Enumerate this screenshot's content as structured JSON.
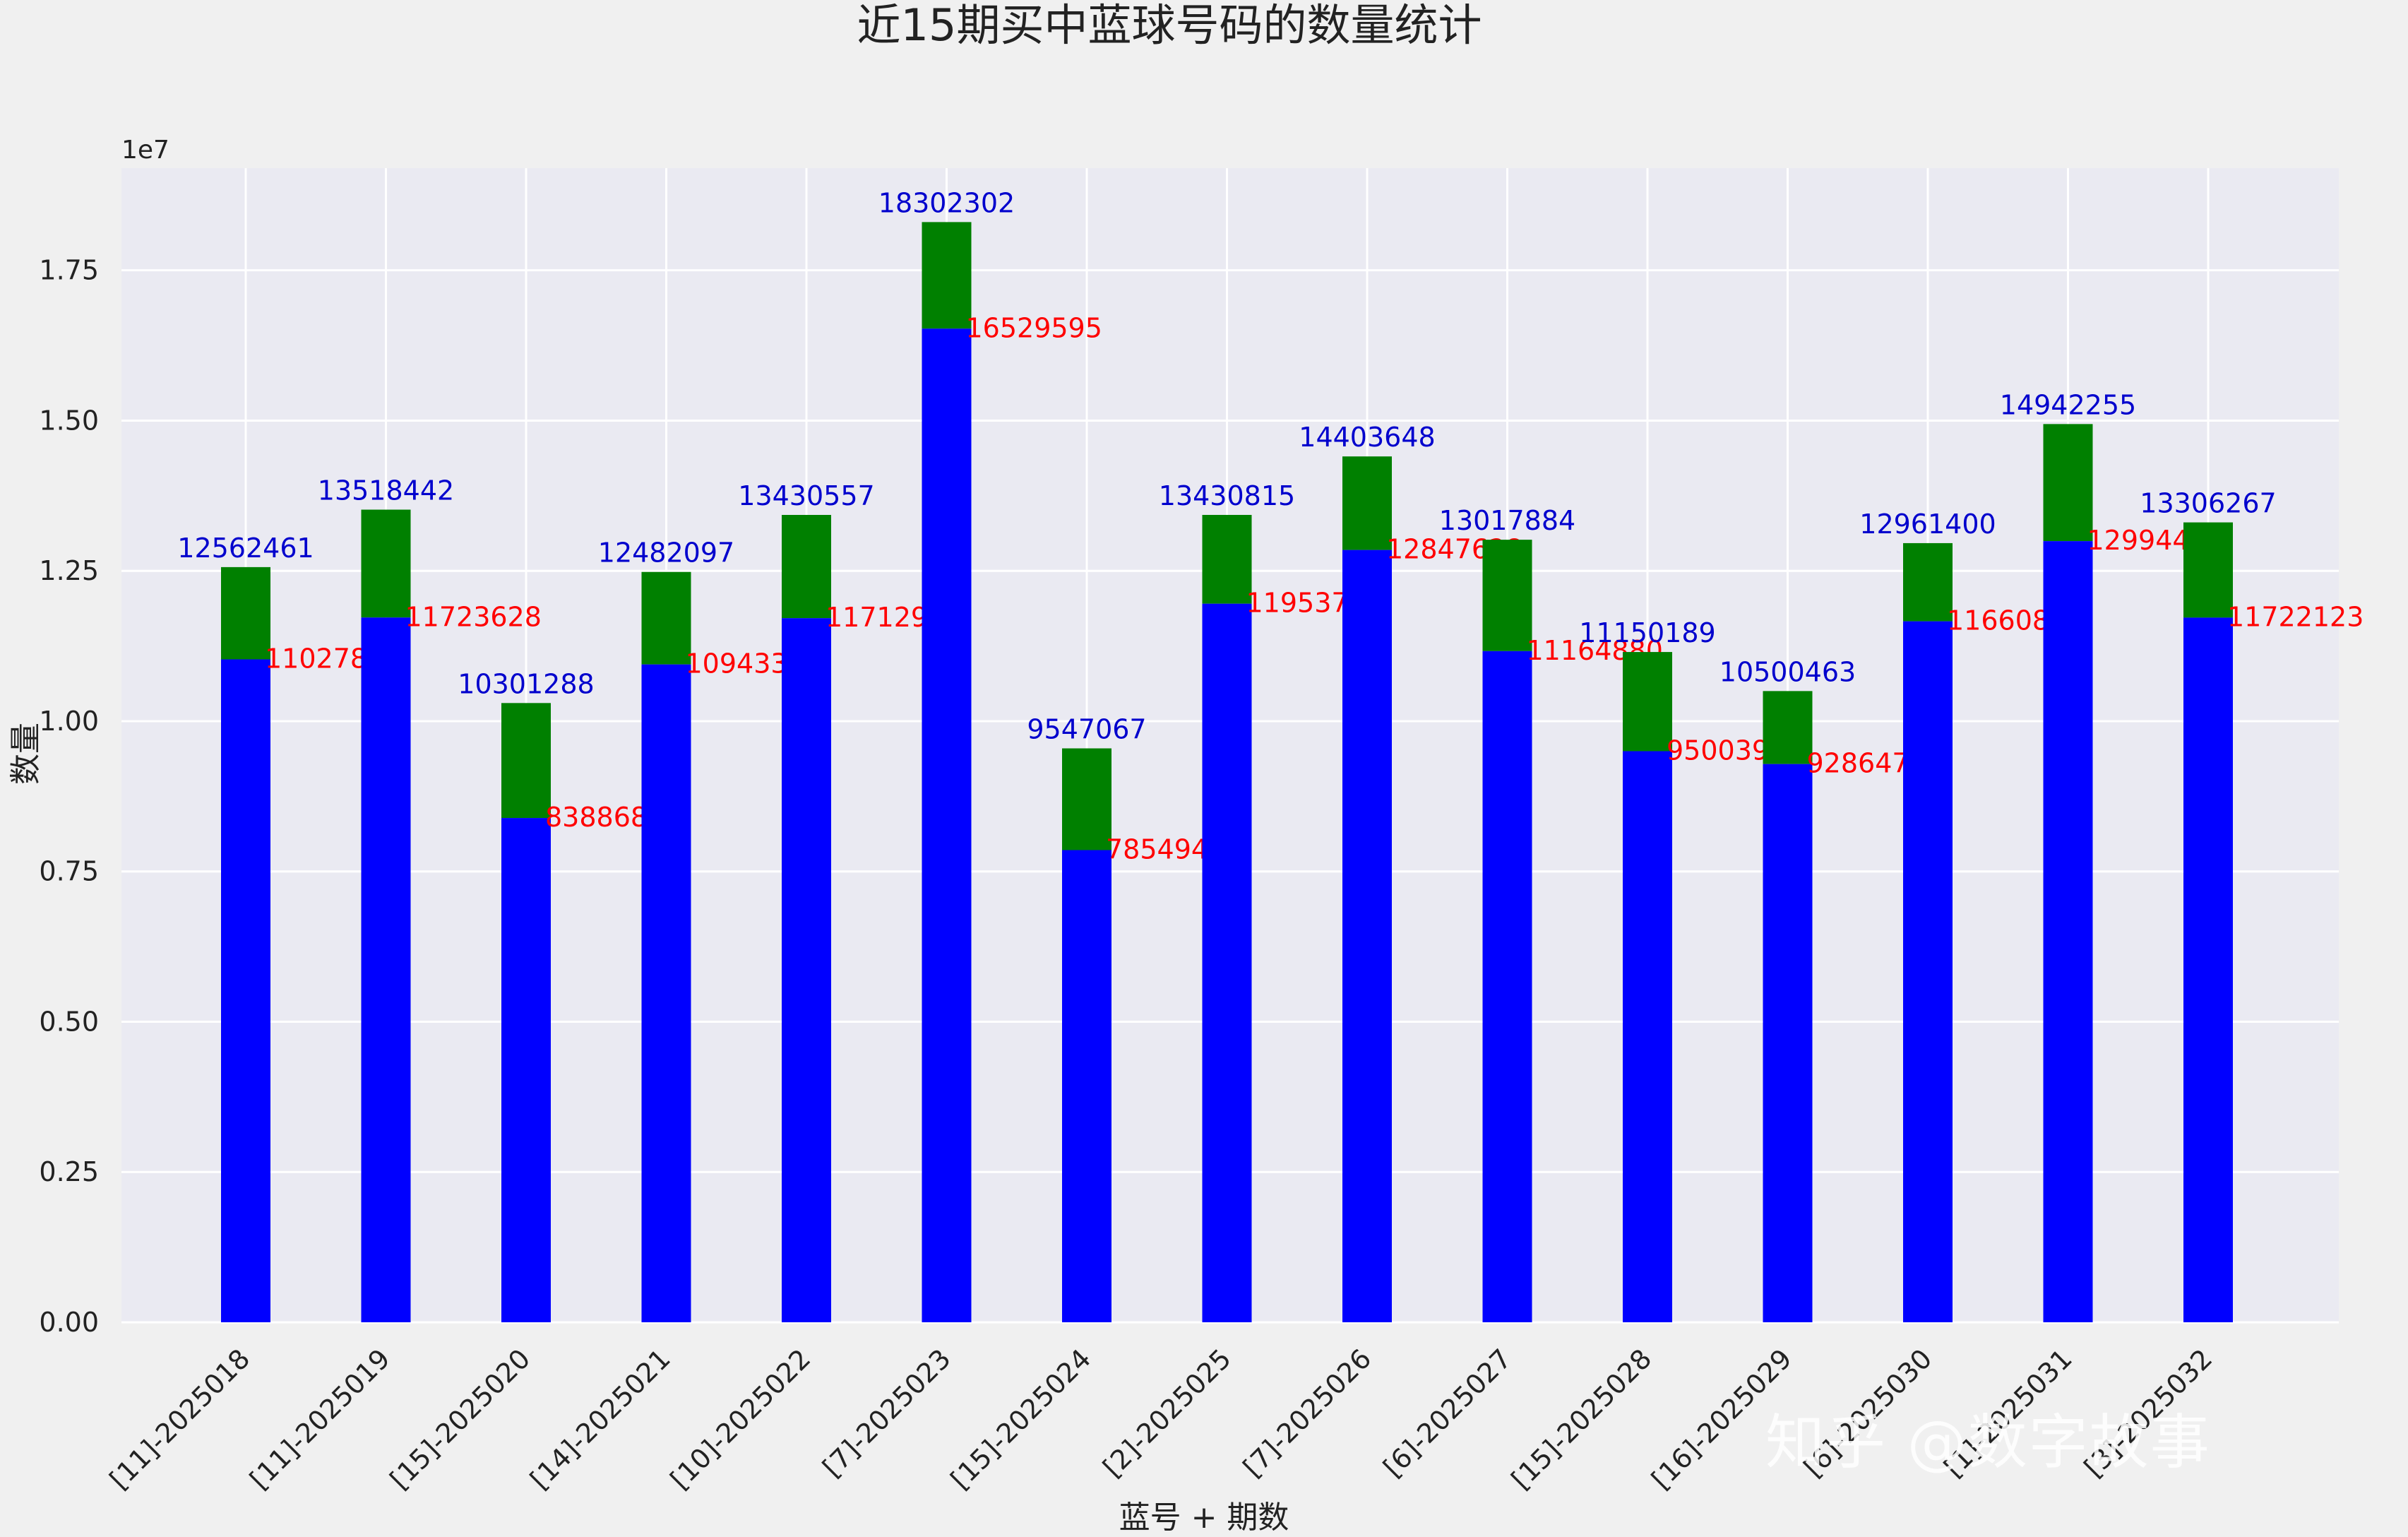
{
  "chart_data": {
    "type": "bar",
    "stacked": true,
    "title": "近15期买中蓝球号码的数量统计",
    "xlabel": "蓝号 + 期数",
    "ylabel": "数量",
    "y_exponent_label": "1e7",
    "ylim": [
      0,
      19200000
    ],
    "yticks": [
      0,
      2500000,
      5000000,
      7500000,
      10000000,
      12500000,
      15000000,
      17500000
    ],
    "ytick_labels": [
      "0.00",
      "0.25",
      "0.50",
      "0.75",
      "1.00",
      "1.25",
      "1.50",
      "1.75"
    ],
    "categories": [
      "[11]-2025018",
      "[11]-2025019",
      "[15]-2025020",
      "[14]-2025021",
      "[10]-2025022",
      "[7]-2025023",
      "[15]-2025024",
      "[2]-2025025",
      "[7]-2025026",
      "[6]-2025027",
      "[15]-2025028",
      "[16]-2025029",
      "[6]-2025030",
      "[1]-2025031",
      "[3]-2025032"
    ],
    "series": [
      {
        "color": "#0000ff",
        "label_color": "#ff0000",
        "values": [
          11027881,
          11723628,
          8388682,
          10943399,
          11712958,
          16529595,
          7854944,
          11953744,
          12847628,
          11164880,
          9500398,
          9286474,
          11660858,
          12994438,
          11722123
        ]
      },
      {
        "color": "#008000",
        "label_color": "#0000cd",
        "totals": [
          12562461,
          13518442,
          10301288,
          12482097,
          13430557,
          18302302,
          9547067,
          13430815,
          14403648,
          13017884,
          11150189,
          10500463,
          12961400,
          14942255,
          13306267
        ]
      }
    ],
    "grid": true,
    "legend": "none"
  },
  "watermark": "知乎 @数字故事",
  "colors": {
    "plot_bg": "#eaeaf2",
    "figure_bg": "#f0f0f0",
    "grid": "#ffffff"
  }
}
